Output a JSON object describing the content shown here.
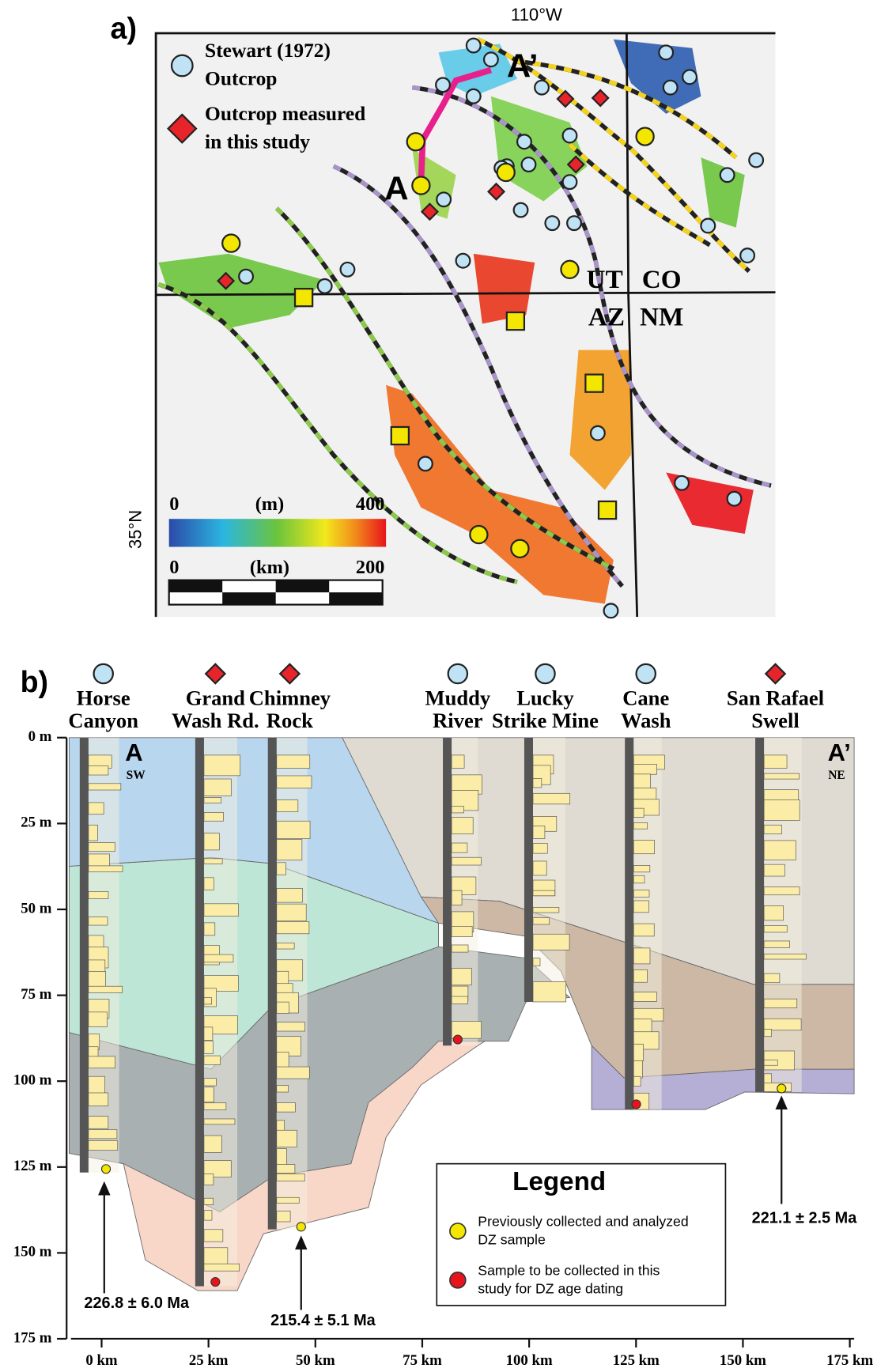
{
  "panel_a": {
    "label": "a)",
    "longitude": "110°W",
    "latitude": "35°N",
    "legend": [
      {
        "lines": [
          "Stewart (1972)",
          "Outcrop"
        ],
        "marker": "circle"
      },
      {
        "lines": [
          "Outcrop measured",
          "in this study"
        ],
        "marker": "diamond"
      }
    ],
    "section_ends": [
      "A",
      "A’"
    ],
    "states": [
      "UT",
      "CO",
      "AZ",
      "NM"
    ],
    "color_bar": {
      "min": "0",
      "unit": "(m)",
      "max": "400"
    },
    "scale_bar": {
      "min": "0",
      "unit": "(km)",
      "max": "200"
    }
  },
  "panel_b": {
    "label": "b)",
    "columns": [
      {
        "name": [
          "Horse",
          "Canyon"
        ],
        "marker": "circle"
      },
      {
        "name": [
          "Grand",
          "Wash Rd."
        ],
        "marker": "diamond"
      },
      {
        "name": [
          "Chimney",
          "Rock"
        ],
        "marker": "diamond"
      },
      {
        "name": [
          "Muddy",
          "River"
        ],
        "marker": "circle"
      },
      {
        "name": [
          "Lucky",
          "Strike Mine"
        ],
        "marker": "circle"
      },
      {
        "name": [
          "Cane",
          "Wash"
        ],
        "marker": "circle"
      },
      {
        "name": [
          "San Rafael",
          "Swell"
        ],
        "marker": "diamond"
      }
    ],
    "ends": [
      {
        "letter": "A",
        "direction": "SW"
      },
      {
        "letter": "A’",
        "direction": "NE"
      }
    ],
    "depth_ticks": [
      "0 m",
      "25 m",
      "50 m",
      "75 m",
      "100 m",
      "125 m",
      "150 m",
      "175 m"
    ],
    "distance_ticks": [
      "0 km",
      "25 km",
      "50 km",
      "75 km",
      "100 km",
      "125 km",
      "150 km",
      "175 km"
    ],
    "ages": [
      "226.8 ± 6.0 Ma",
      "215.4 ± 5.1 Ma",
      "221.1 ± 2.5 Ma"
    ],
    "legend": {
      "title": "Legend",
      "entries": [
        {
          "lines": [
            "Previously collected and analyzed",
            "DZ sample"
          ],
          "color": "#f5e600"
        },
        {
          "lines": [
            "Sample to be collected in this",
            "study for DZ age dating"
          ],
          "color": "#e8141b"
        }
      ]
    }
  }
}
